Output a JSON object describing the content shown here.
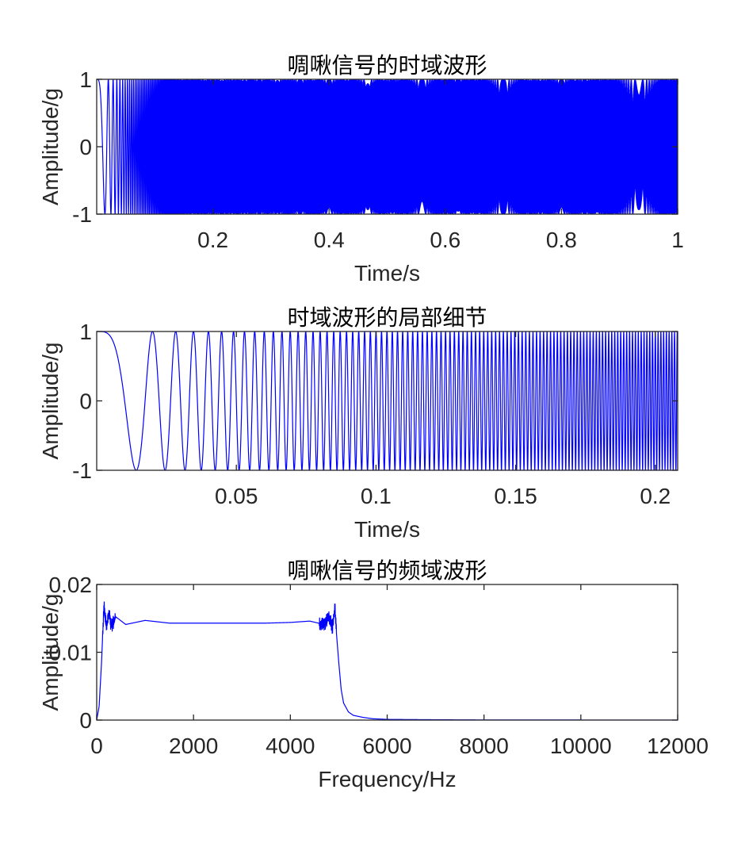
{
  "chart_data": [
    {
      "type": "line",
      "title": "啁啾信号的时域波形",
      "xlabel": "Time/s",
      "ylabel": "Amplitude/g",
      "xlim": [
        0,
        1
      ],
      "ylim": [
        -1,
        1
      ],
      "xticks": [
        0.2,
        0.4,
        0.6,
        0.8,
        1
      ],
      "xtick_labels": [
        "0.2",
        "0.4",
        "0.6",
        "0.8",
        "1"
      ],
      "yticks": [
        -1,
        0,
        1
      ],
      "ytick_labels": [
        "-1",
        "0",
        "1"
      ],
      "grid": false,
      "series": [
        {
          "signal": "linear chirp",
          "amplitude": 1,
          "f0_hz": 0,
          "f1_hz": 5000,
          "duration_s": 1,
          "color": "#0000ff"
        }
      ]
    },
    {
      "type": "line",
      "title": "时域波形的局部细节",
      "xlabel": "Time/s",
      "ylabel": "Amplitude/g",
      "xlim": [
        0,
        0.208
      ],
      "ylim": [
        -1,
        1
      ],
      "xticks": [
        0.05,
        0.1,
        0.15,
        0.2
      ],
      "xtick_labels": [
        "0.05",
        "0.1",
        "0.15",
        "0.2"
      ],
      "yticks": [
        -1,
        0,
        1
      ],
      "ytick_labels": [
        "-1",
        "0",
        "1"
      ],
      "grid": false,
      "series": [
        {
          "signal": "linear chirp",
          "amplitude": 1,
          "f0_hz": 0,
          "f1_hz": 5000,
          "duration_s": 1,
          "color": "#0000ff"
        }
      ]
    },
    {
      "type": "line",
      "title": "啁啾信号的频域波形",
      "xlabel": "Frequency/Hz",
      "ylabel": "Amplitude/g",
      "xlim": [
        0,
        12000
      ],
      "ylim": [
        0,
        0.02
      ],
      "xticks": [
        0,
        2000,
        4000,
        6000,
        8000,
        10000,
        12000
      ],
      "xtick_labels": [
        "0",
        "2000",
        "4000",
        "6000",
        "8000",
        "10000",
        "12000"
      ],
      "yticks": [
        0,
        0.01,
        0.02
      ],
      "ytick_labels": [
        "0",
        "0.01",
        "0.02"
      ],
      "grid": false,
      "series": [
        {
          "color": "#0000ff",
          "x": [
            0,
            50,
            100,
            150,
            170,
            200,
            250,
            300,
            400,
            600,
            1000,
            1500,
            2000,
            2500,
            3000,
            3500,
            4000,
            4400,
            4700,
            4800,
            4870,
            4920,
            4950,
            5000,
            5050,
            5100,
            5200,
            5300,
            5500,
            5700,
            6000,
            7000,
            8000,
            10000,
            12000
          ],
          "y": [
            0,
            0.002,
            0.0085,
            0.0172,
            0.016,
            0.0135,
            0.0158,
            0.0138,
            0.0152,
            0.0141,
            0.0147,
            0.0143,
            0.0143,
            0.0143,
            0.0143,
            0.0143,
            0.0144,
            0.0146,
            0.0141,
            0.0152,
            0.0137,
            0.0167,
            0.013,
            0.0085,
            0.0045,
            0.0025,
            0.0012,
            0.0007,
            0.0004,
            0.0002,
            0.0001,
            5e-05,
            2e-05,
            1e-05,
            0
          ],
          "band_edge_oscillation_hz": [
            [
              120,
              380
            ],
            [
              4600,
              4950
            ]
          ]
        }
      ]
    }
  ]
}
